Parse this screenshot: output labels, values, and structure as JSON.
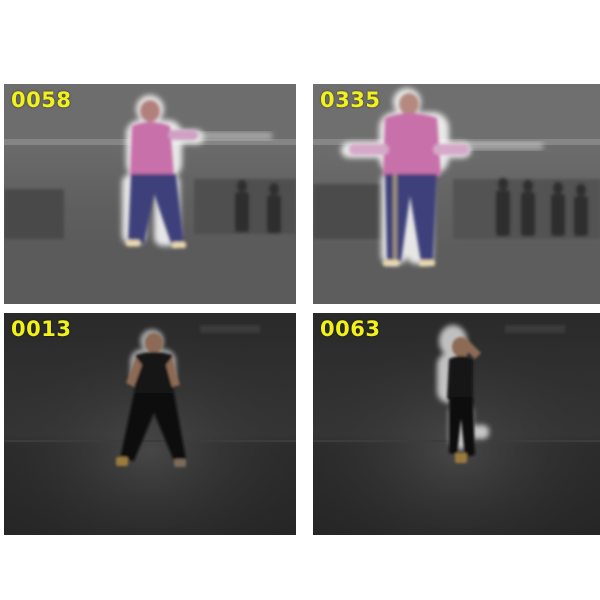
{
  "frames": [
    {
      "label": "0058",
      "scene": "gym-gray"
    },
    {
      "label": "0335",
      "scene": "gym-gray"
    },
    {
      "label": "0013",
      "scene": "studio-dark"
    },
    {
      "label": "0063",
      "scene": "studio-dark"
    }
  ],
  "colors": {
    "label": "#f2f21a",
    "silhouette-glow": "#ffffff",
    "shirt-pink": "#c86fa9",
    "pants-blue": "#3c3f7a",
    "studio-bg": "#2a2a2a",
    "gym-bg": "#6b6b6b"
  }
}
